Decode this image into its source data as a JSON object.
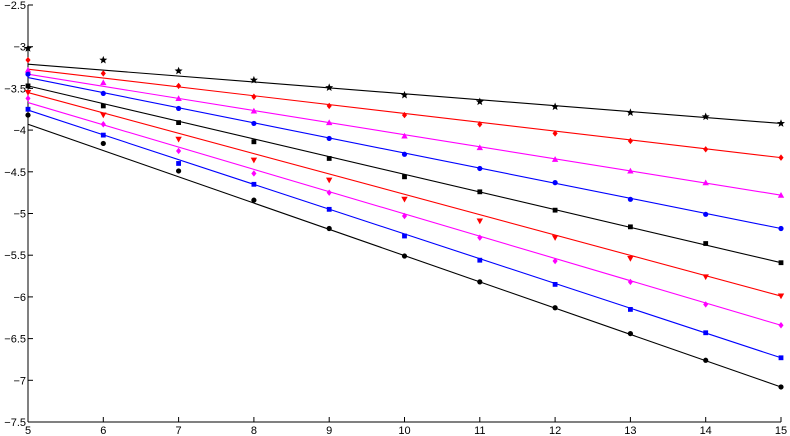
{
  "chart_data": {
    "type": "line",
    "title": "",
    "xlabel": "",
    "ylabel": "",
    "xlim": [
      5,
      15
    ],
    "ylim": [
      -7.5,
      -2.5
    ],
    "xticks": [
      "5",
      "6",
      "7",
      "8",
      "9",
      "10",
      "11",
      "12",
      "13",
      "14",
      "15"
    ],
    "yticks": [
      "-2.5",
      "-3",
      "-3.5",
      "-4",
      "-4.5",
      "-5",
      "-5.5",
      "-6",
      "-6.5",
      "-7",
      "-7.5"
    ],
    "grid": false,
    "legend": "none",
    "x": [
      5,
      6,
      7,
      8,
      9,
      10,
      11,
      12,
      13,
      14,
      15
    ],
    "series": [
      {
        "color": "#000000",
        "marker": "star",
        "points": [
          -3.02,
          -3.16,
          -3.29,
          -3.4,
          -3.49,
          -3.58,
          -3.66,
          -3.72,
          -3.79,
          -3.84,
          -3.92
        ],
        "fit": [
          -3.21,
          -3.92
        ]
      },
      {
        "color": "#ff0000",
        "marker": "diamond",
        "points": [
          -3.16,
          -3.32,
          -3.47,
          -3.6,
          -3.71,
          -3.82,
          -3.93,
          -4.04,
          -4.13,
          -4.23,
          -4.33
        ],
        "fit": [
          -3.27,
          -4.33
        ]
      },
      {
        "color": "#ff00ff",
        "marker": "triangle",
        "points": [
          -3.28,
          -3.43,
          -3.62,
          -3.77,
          -3.91,
          -4.07,
          -4.21,
          -4.35,
          -4.49,
          -4.63,
          -4.78
        ],
        "fit": [
          -3.33,
          -4.78
        ]
      },
      {
        "color": "#0000ff",
        "marker": "circle",
        "points": [
          -3.33,
          -3.56,
          -3.74,
          -3.92,
          -4.1,
          -4.29,
          -4.46,
          -4.63,
          -4.83,
          -5.01,
          -5.18
        ],
        "fit": [
          -3.37,
          -5.18
        ]
      },
      {
        "color": "#000000",
        "marker": "square",
        "points": [
          -3.47,
          -3.71,
          -3.91,
          -4.14,
          -4.34,
          -4.56,
          -4.74,
          -4.96,
          -5.16,
          -5.36,
          -5.59
        ],
        "fit": [
          -3.47,
          -5.59
        ]
      },
      {
        "color": "#ff0000",
        "marker": "triangle-down",
        "points": [
          -3.55,
          -3.82,
          -4.11,
          -4.36,
          -4.6,
          -4.83,
          -5.09,
          -5.29,
          -5.54,
          -5.76,
          -5.99
        ],
        "fit": [
          -3.55,
          -5.99
        ]
      },
      {
        "color": "#ff00ff",
        "marker": "diamond",
        "points": [
          -3.62,
          -3.93,
          -4.25,
          -4.52,
          -4.75,
          -5.03,
          -5.29,
          -5.57,
          -5.82,
          -6.09,
          -6.34
        ],
        "fit": [
          -3.67,
          -6.34
        ]
      },
      {
        "color": "#0000ff",
        "marker": "square",
        "points": [
          -3.75,
          -4.06,
          -4.4,
          -4.65,
          -4.95,
          -5.27,
          -5.56,
          -5.85,
          -6.15,
          -6.43,
          -6.73
        ],
        "fit": [
          -3.76,
          -6.73
        ]
      },
      {
        "color": "#000000",
        "marker": "circle",
        "points": [
          -3.82,
          -4.16,
          -4.49,
          -4.84,
          -5.18,
          -5.51,
          -5.82,
          -6.13,
          -6.44,
          -6.76,
          -7.08
        ],
        "fit": [
          -3.93,
          -7.08
        ]
      }
    ]
  }
}
